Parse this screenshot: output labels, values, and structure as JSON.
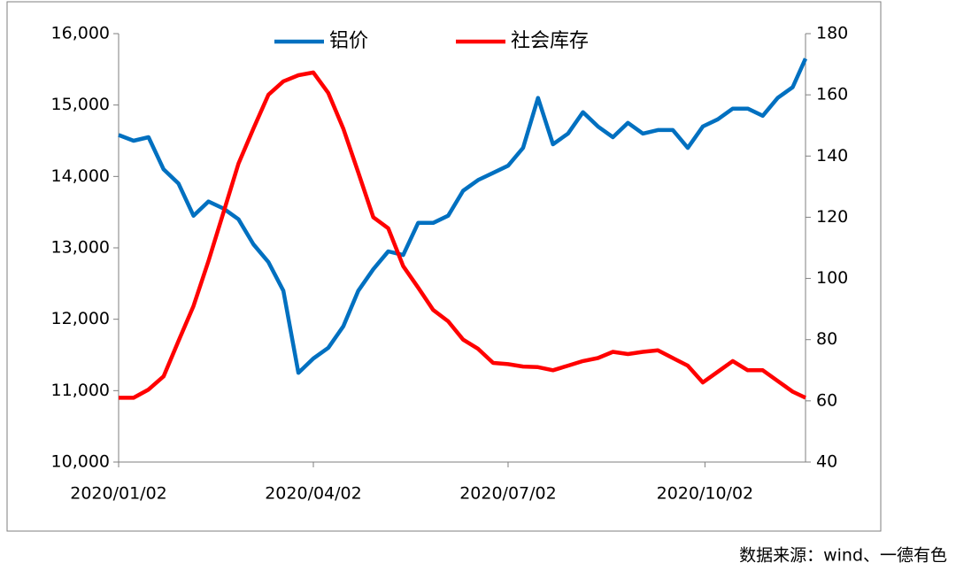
{
  "chart_data": {
    "type": "line",
    "x": [
      "2020/01/02",
      "2020/01/09",
      "2020/01/16",
      "2020/01/23",
      "2020/01/30",
      "2020/02/06",
      "2020/02/13",
      "2020/02/20",
      "2020/02/27",
      "2020/03/05",
      "2020/03/12",
      "2020/03/19",
      "2020/03/26",
      "2020/04/02",
      "2020/04/09",
      "2020/04/16",
      "2020/04/23",
      "2020/04/30",
      "2020/05/07",
      "2020/05/14",
      "2020/05/21",
      "2020/05/28",
      "2020/06/04",
      "2020/06/11",
      "2020/06/18",
      "2020/06/25",
      "2020/07/02",
      "2020/07/09",
      "2020/07/16",
      "2020/07/23",
      "2020/07/30",
      "2020/08/06",
      "2020/08/13",
      "2020/08/20",
      "2020/08/27",
      "2020/09/03",
      "2020/09/10",
      "2020/09/17",
      "2020/09/24",
      "2020/10/01",
      "2020/10/08",
      "2020/10/15",
      "2020/10/22",
      "2020/10/29",
      "2020/11/05",
      "2020/11/12",
      "2020/11/18"
    ],
    "series": [
      {
        "name": "铝价",
        "color": "#0070c0",
        "values": [
          14580,
          14500,
          14550,
          14100,
          13900,
          13450,
          13650,
          13550,
          13400,
          13050,
          12800,
          12400,
          11250,
          11450,
          11600,
          11900,
          12400,
          12700,
          12950,
          12900,
          13350,
          13350,
          13450,
          13800,
          13950,
          14050,
          14150,
          14400,
          15100,
          14450,
          14600,
          14900,
          14700,
          14550,
          14750,
          14600,
          14650,
          14650,
          14400,
          14700,
          14800,
          14950,
          14950,
          14850,
          15100,
          15250,
          15650
        ]
      },
      {
        "name": "社会库存",
        "color": "#ff0000",
        "axis": "y2",
        "values": [
          61,
          61,
          63.7,
          68,
          79.6,
          91,
          105.7,
          121.6,
          137.5,
          149,
          160,
          164.4,
          166.4,
          167.3,
          160.6,
          149,
          134.6,
          120,
          116.4,
          104,
          97,
          89.7,
          86,
          80,
          77,
          72.4,
          72,
          71.2,
          71,
          70,
          71.5,
          73,
          74,
          76,
          75.3,
          76,
          76.5,
          74,
          71.5,
          66,
          69.5,
          73,
          70,
          70,
          66.5,
          63,
          61
        ]
      }
    ],
    "xlim": [
      "2020/01/02",
      "2020/11/18"
    ],
    "xticks": [
      "2020/01/02",
      "2020/04/02",
      "2020/07/02",
      "2020/10/02"
    ],
    "ylim": [
      10000,
      16000
    ],
    "yticks": [
      {
        "value": 10000,
        "label": "10,000"
      },
      {
        "value": 11000,
        "label": "11,000"
      },
      {
        "value": 12000,
        "label": "12,000"
      },
      {
        "value": 13000,
        "label": "13,000"
      },
      {
        "value": 14000,
        "label": "14,000"
      },
      {
        "value": 15000,
        "label": "15,000"
      },
      {
        "value": 16000,
        "label": "16,000"
      }
    ],
    "y2lim": [
      40,
      180
    ],
    "y2ticks": [
      40,
      60,
      80,
      100,
      120,
      140,
      160,
      180
    ],
    "grid": false,
    "legend": "top",
    "source": "数据来源：wind、一德有色"
  }
}
